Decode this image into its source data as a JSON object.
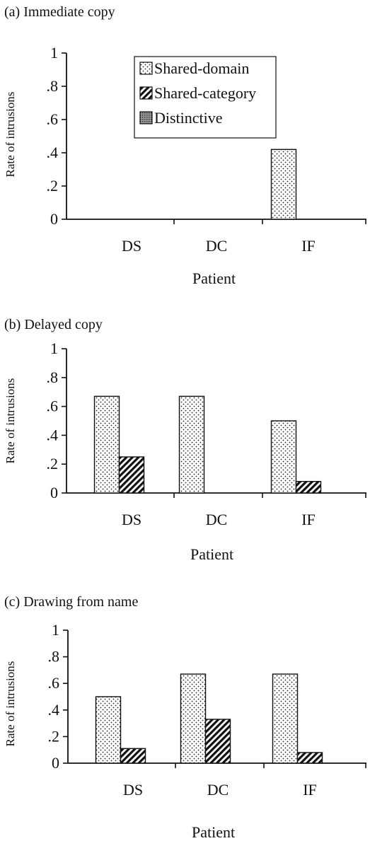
{
  "legend": [
    {
      "label": "Shared-domain",
      "pattern": "dots"
    },
    {
      "label": "Shared-category",
      "pattern": "hatch"
    },
    {
      "label": "Distinctive",
      "pattern": "crosshatch"
    }
  ],
  "chart_data": [
    {
      "type": "bar",
      "title": "(a) Immediate copy",
      "xlabel": "Patient",
      "ylabel": "Rate of intrusions",
      "ylim": [
        0,
        1
      ],
      "yticks": [
        "0",
        ".2",
        ".4",
        ".6",
        ".8",
        "1"
      ],
      "categories": [
        "DS",
        "DC",
        "IF"
      ],
      "series": [
        {
          "name": "Shared-domain",
          "values": [
            0,
            0,
            0.42
          ]
        },
        {
          "name": "Shared-category",
          "values": [
            0,
            0,
            0
          ]
        },
        {
          "name": "Distinctive",
          "values": [
            0,
            0,
            0
          ]
        }
      ],
      "legend": "top-center"
    },
    {
      "type": "bar",
      "title": "(b) Delayed copy",
      "xlabel": "Patient",
      "ylabel": "Rate of intrusions",
      "ylim": [
        0,
        1
      ],
      "yticks": [
        "0",
        ".2",
        ".4",
        ".6",
        ".8",
        "1"
      ],
      "categories": [
        "DS",
        "DC",
        "IF"
      ],
      "series": [
        {
          "name": "Shared-domain",
          "values": [
            0.67,
            0.67,
            0.5
          ]
        },
        {
          "name": "Shared-category",
          "values": [
            0.25,
            0,
            0.08
          ]
        },
        {
          "name": "Distinctive",
          "values": [
            0,
            0,
            0
          ]
        }
      ]
    },
    {
      "type": "bar",
      "title": "(c) Drawing from name",
      "xlabel": "Patient",
      "ylabel": "Rate of intrusions",
      "ylim": [
        0,
        1
      ],
      "yticks": [
        "0",
        ".2",
        ".4",
        ".6",
        ".8",
        "1"
      ],
      "categories": [
        "DS",
        "DC",
        "IF"
      ],
      "series": [
        {
          "name": "Shared-domain",
          "values": [
            0.5,
            0.67,
            0.67
          ]
        },
        {
          "name": "Shared-category",
          "values": [
            0.11,
            0.33,
            0.08
          ]
        },
        {
          "name": "Distinctive",
          "values": [
            0,
            0,
            0
          ]
        }
      ]
    }
  ]
}
